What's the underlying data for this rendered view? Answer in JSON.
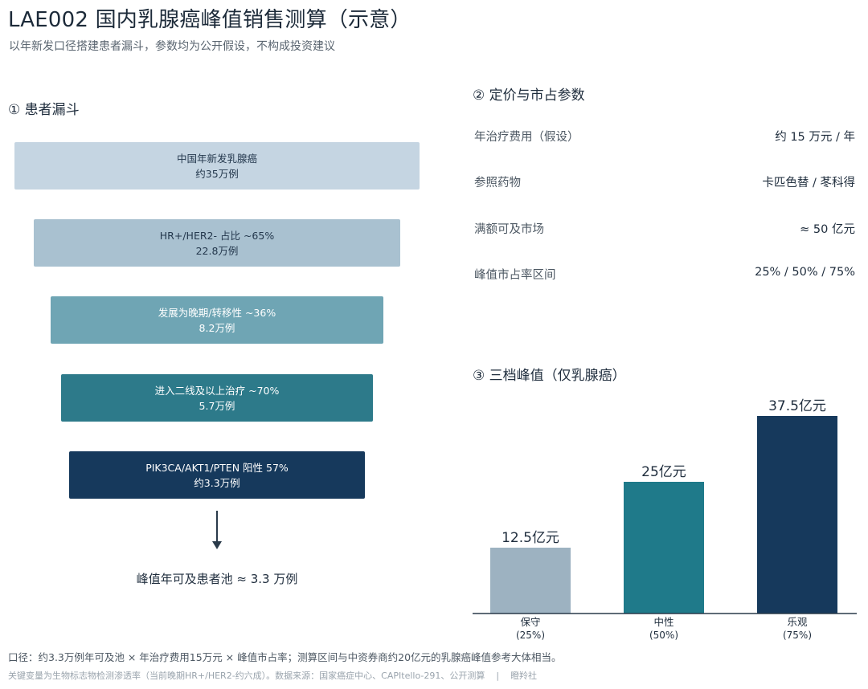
{
  "header": {
    "title": "LAE002 国内乳腺癌峰值销售测算（示意）",
    "subtitle": "以年新发口径搭建患者漏斗，参数均为公开假设，不构成投资建议"
  },
  "funnel": {
    "heading": "① 患者漏斗",
    "stages": [
      {
        "label": "中国年新发乳腺癌",
        "value": "约35万例",
        "color": "#c5d5e2"
      },
      {
        "label": "HR+/HER2- 占比 ~65%",
        "value": "22.8万例",
        "color": "#a9c1d0"
      },
      {
        "label": "发展为晚期/转移性 ~36%",
        "value": "8.2万例",
        "color": "#6fa5b4"
      },
      {
        "label": "进入二线及以上治疗 ~70%",
        "value": "5.7万例",
        "color": "#2d7a8a"
      },
      {
        "label": "PIK3CA/AKT1/PTEN 阳性 57%",
        "value": "约3.3万例",
        "color": "#16395c"
      }
    ],
    "result": "峰值年可及患者池 ≈ 3.3 万例"
  },
  "pricing": {
    "heading": "② 定价与市占参数",
    "rows": [
      {
        "label": "年治疗费用（假设）",
        "value": "约 15 万元 / 年"
      },
      {
        "label": "参照药物",
        "value": "卡匹色替 / 苳科得"
      },
      {
        "label": "满额可及市场",
        "value": "≈ 50 亿元"
      },
      {
        "label": "峰值市占率区间",
        "value": "25% / 50% / 75%"
      }
    ]
  },
  "chart_data": {
    "type": "bar",
    "title": "③ 三档峰值（仅乳腺癌）",
    "categories": [
      "保守",
      "中性",
      "乐观"
    ],
    "category_sublabels": [
      "(25%)",
      "(50%)",
      "(75%)"
    ],
    "values": [
      12.5,
      25,
      37.5
    ],
    "data_labels": [
      "12.5亿元",
      "25亿元",
      "37.5亿元"
    ],
    "colors": [
      "#9db2c1",
      "#1f7a8a",
      "#16395c"
    ],
    "unit": "亿元",
    "ylim": [
      0,
      37.5
    ],
    "grid": false,
    "legend": "none"
  },
  "footer": {
    "line1": "口径：约3.3万例年可及池 × 年治疗费用15万元 × 峰值市占率；测算区间与中资券商约20亿元的乳腺癌峰值参考大体相当。",
    "line2_main": "关键变量为生物标志物检测渗透率（当前晚期HR+/HER2-约六成）。数据来源：国家癌症中心、CAPItello-291、公开测算",
    "line2_sep": "|",
    "line2_brand": "瞪羚社"
  }
}
